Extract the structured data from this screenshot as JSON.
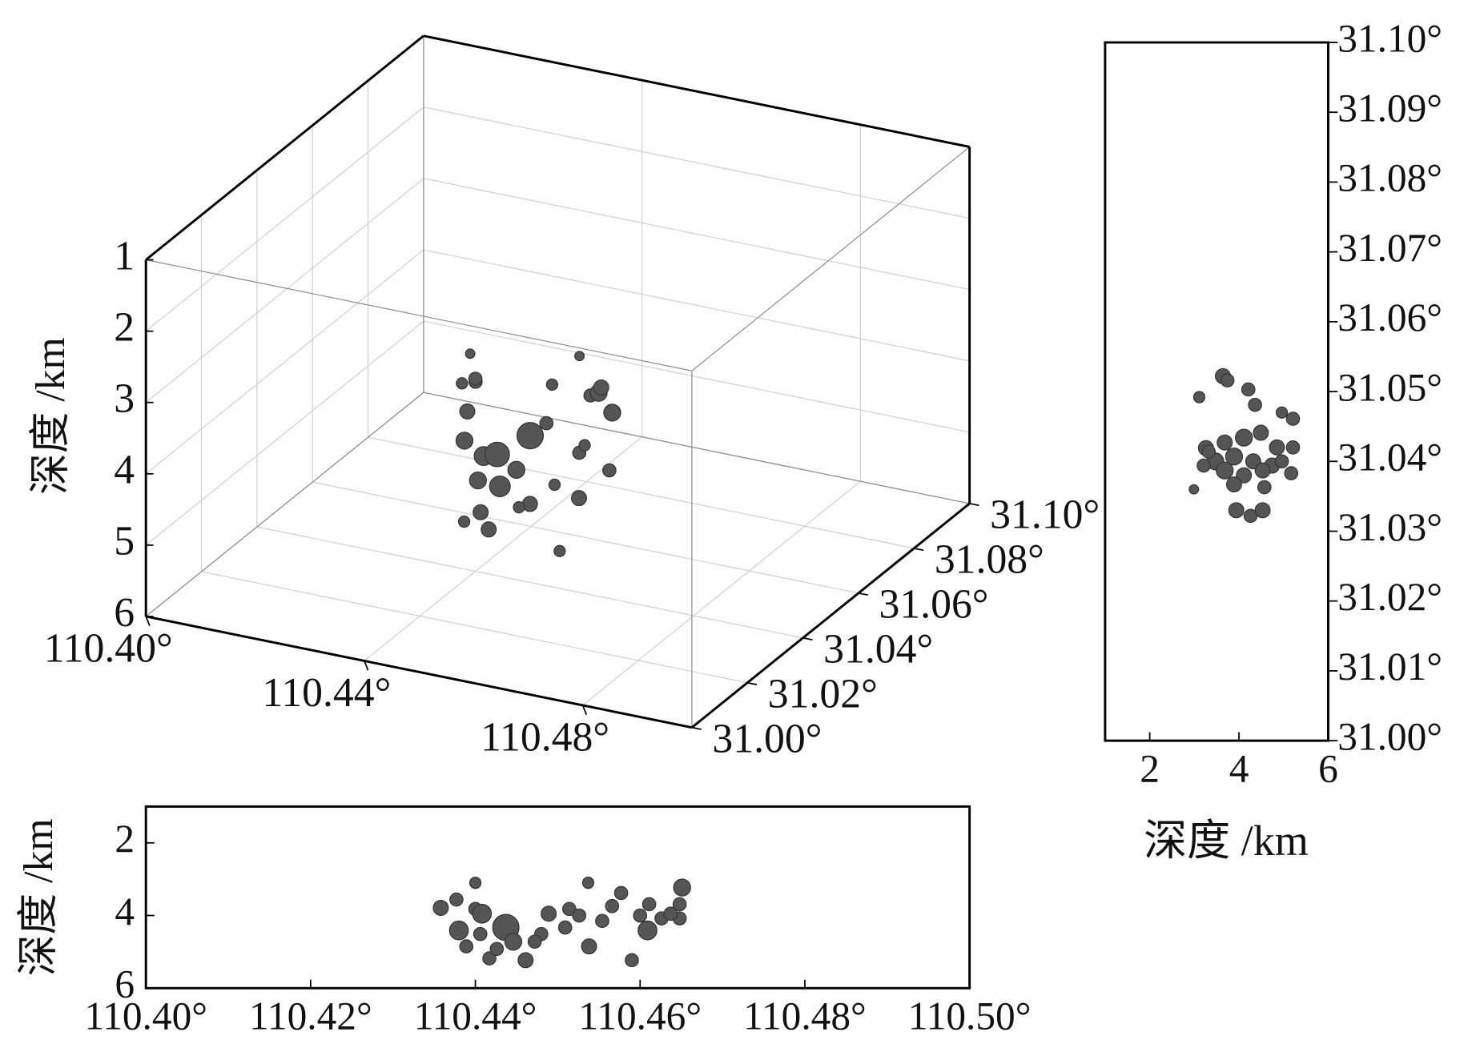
{
  "chart_data": [
    {
      "type": "scatter3d",
      "zlabel": "深度 /km",
      "color": "#555555",
      "grid": true,
      "xlim": [
        110.4,
        110.5
      ],
      "ylim": [
        31.0,
        31.1
      ],
      "zlim": [
        1,
        6
      ],
      "xticks": [
        {
          "value": 110.4,
          "label": "110.40°"
        },
        {
          "value": 110.44,
          "label": "110.44°"
        },
        {
          "value": 110.48,
          "label": "110.48°"
        }
      ],
      "yticks": [
        {
          "value": 31.0,
          "label": "31.00°"
        },
        {
          "value": 31.02,
          "label": "31.02°"
        },
        {
          "value": 31.04,
          "label": "31.04°"
        },
        {
          "value": 31.06,
          "label": "31.06°"
        },
        {
          "value": 31.08,
          "label": "31.08°"
        },
        {
          "value": 31.1,
          "label": "31.10°"
        }
      ],
      "zticks": [
        1,
        2,
        3,
        4,
        5,
        6
      ],
      "x": [
        110.436,
        110.438,
        110.44,
        110.437,
        110.435,
        110.438,
        110.441,
        110.444,
        110.442,
        110.445,
        110.447,
        110.448,
        110.45,
        110.443,
        110.441,
        110.446,
        110.452,
        110.455,
        110.456,
        110.458,
        110.46,
        110.461,
        110.457,
        110.459,
        110.462,
        110.46,
        110.459,
        110.454,
        110.451,
        110.449
      ],
      "y": [
        31.046,
        31.044,
        31.04,
        31.043,
        31.045,
        31.04,
        31.041,
        31.04,
        31.037,
        31.039,
        31.041,
        31.044,
        31.04,
        31.036,
        31.034,
        31.033,
        31.042,
        31.048,
        31.05,
        31.049,
        31.046,
        31.048,
        31.044,
        31.042,
        31.045,
        31.038,
        31.033,
        31.041,
        31.046,
        31.038
      ],
      "z": [
        3.2,
        3.5,
        3.3,
        3.9,
        3.6,
        4.2,
        4.4,
        4.3,
        4.6,
        4.7,
        4.5,
        4.1,
        4.9,
        5.0,
        5.1,
        5.1,
        3.8,
        3.0,
        3.6,
        3.5,
        3.3,
        3.7,
        4.2,
        4.0,
        4.4,
        4.6,
        5.2,
        4.6,
        3.4,
        4.9
      ],
      "sizes": [
        5,
        7,
        7,
        8,
        6,
        9,
        10,
        13,
        9,
        11,
        9,
        14,
        8,
        8,
        6,
        8,
        7,
        5,
        7,
        9,
        8,
        9,
        7,
        6,
        7,
        8,
        6,
        6,
        6,
        6
      ]
    },
    {
      "type": "scatter",
      "xlabel": "深度 /km",
      "color": "#555555",
      "y_axis_side": "right",
      "xlim": [
        1,
        6
      ],
      "xticks": [
        2,
        4,
        6
      ],
      "ylim": [
        31.0,
        31.1
      ],
      "yticks": [
        {
          "value": 31.0,
          "label": "31.00°"
        },
        {
          "value": 31.01,
          "label": "31.01°"
        },
        {
          "value": 31.02,
          "label": "31.02°"
        },
        {
          "value": 31.03,
          "label": "31.03°"
        },
        {
          "value": 31.04,
          "label": "31.04°"
        },
        {
          "value": 31.05,
          "label": "31.05°"
        },
        {
          "value": 31.06,
          "label": "31.06°"
        },
        {
          "value": 31.07,
          "label": "31.07°"
        },
        {
          "value": 31.08,
          "label": "31.08°"
        },
        {
          "value": 31.09,
          "label": "31.09°"
        },
        {
          "value": 31.1,
          "label": "31.10°"
        }
      ],
      "x": [
        3.64,
        3.74,
        3.11,
        4.21,
        4.36,
        4.96,
        5.21,
        3.26,
        3.68,
        4.11,
        4.49,
        4.85,
        5.21,
        3.47,
        3.89,
        4.32,
        4.74,
        3.21,
        3.68,
        4.11,
        4.53,
        5.17,
        2.99,
        3.89,
        4.57,
        3.94,
        4.26,
        4.53,
        3.32,
        4.96
      ],
      "y": [
        31.0522,
        31.0516,
        31.0492,
        31.0503,
        31.0481,
        31.047,
        31.0461,
        31.0419,
        31.0427,
        31.0434,
        31.0441,
        31.042,
        31.042,
        31.04,
        31.0407,
        31.04,
        31.0394,
        31.0394,
        31.0387,
        31.038,
        31.0387,
        31.0383,
        31.036,
        31.0367,
        31.0363,
        31.033,
        31.0322,
        31.033,
        31.0414,
        31.04
      ],
      "sizes": [
        8,
        7,
        6,
        7,
        7,
        6,
        7,
        8,
        8,
        9,
        8,
        8,
        7,
        9,
        9,
        8,
        8,
        7,
        9,
        8,
        8,
        7,
        5,
        8,
        7,
        8,
        7,
        8,
        7,
        7
      ]
    },
    {
      "type": "scatter",
      "ylabel": "深度 /km",
      "color": "#555555",
      "y_inverted": true,
      "xlim": [
        110.4,
        110.5
      ],
      "xticks": [
        {
          "value": 110.4,
          "label": "110.40°"
        },
        {
          "value": 110.42,
          "label": "110.42°"
        },
        {
          "value": 110.44,
          "label": "110.44°"
        },
        {
          "value": 110.46,
          "label": "110.46°"
        },
        {
          "value": 110.48,
          "label": "110.48°"
        },
        {
          "value": 110.5,
          "label": "110.50°"
        }
      ],
      "ylim": [
        1,
        6
      ],
      "yticks": [
        2,
        4,
        6
      ],
      "x": [
        110.4358,
        110.4377,
        110.44,
        110.44,
        110.4408,
        110.438,
        110.4406,
        110.4437,
        110.4417,
        110.4461,
        110.4446,
        110.448,
        110.4489,
        110.4509,
        110.4514,
        110.4537,
        110.4538,
        110.4554,
        110.4577,
        110.4566,
        110.459,
        110.4609,
        110.4611,
        110.46,
        110.4626,
        110.4651,
        110.4648,
        110.4648,
        110.4637,
        110.4472,
        110.4389,
        110.4526,
        110.4426
      ],
      "y": [
        3.79,
        3.56,
        3.1,
        3.82,
        3.95,
        4.41,
        4.51,
        4.33,
        5.18,
        5.23,
        4.72,
        4.51,
        3.95,
        4.33,
        3.82,
        3.1,
        4.85,
        4.15,
        3.38,
        3.74,
        5.23,
        4.41,
        3.69,
        4.0,
        4.08,
        3.23,
        3.69,
        4.08,
        3.95,
        4.72,
        4.85,
        4.0,
        4.92
      ],
      "sizes": [
        8,
        7,
        6,
        7,
        10,
        10,
        7,
        14,
        7,
        8,
        9,
        7,
        8,
        7,
        7,
        6,
        8,
        7,
        7,
        7,
        7,
        10,
        7,
        7,
        7,
        9,
        7,
        7,
        7,
        7,
        7,
        7,
        7
      ]
    }
  ]
}
